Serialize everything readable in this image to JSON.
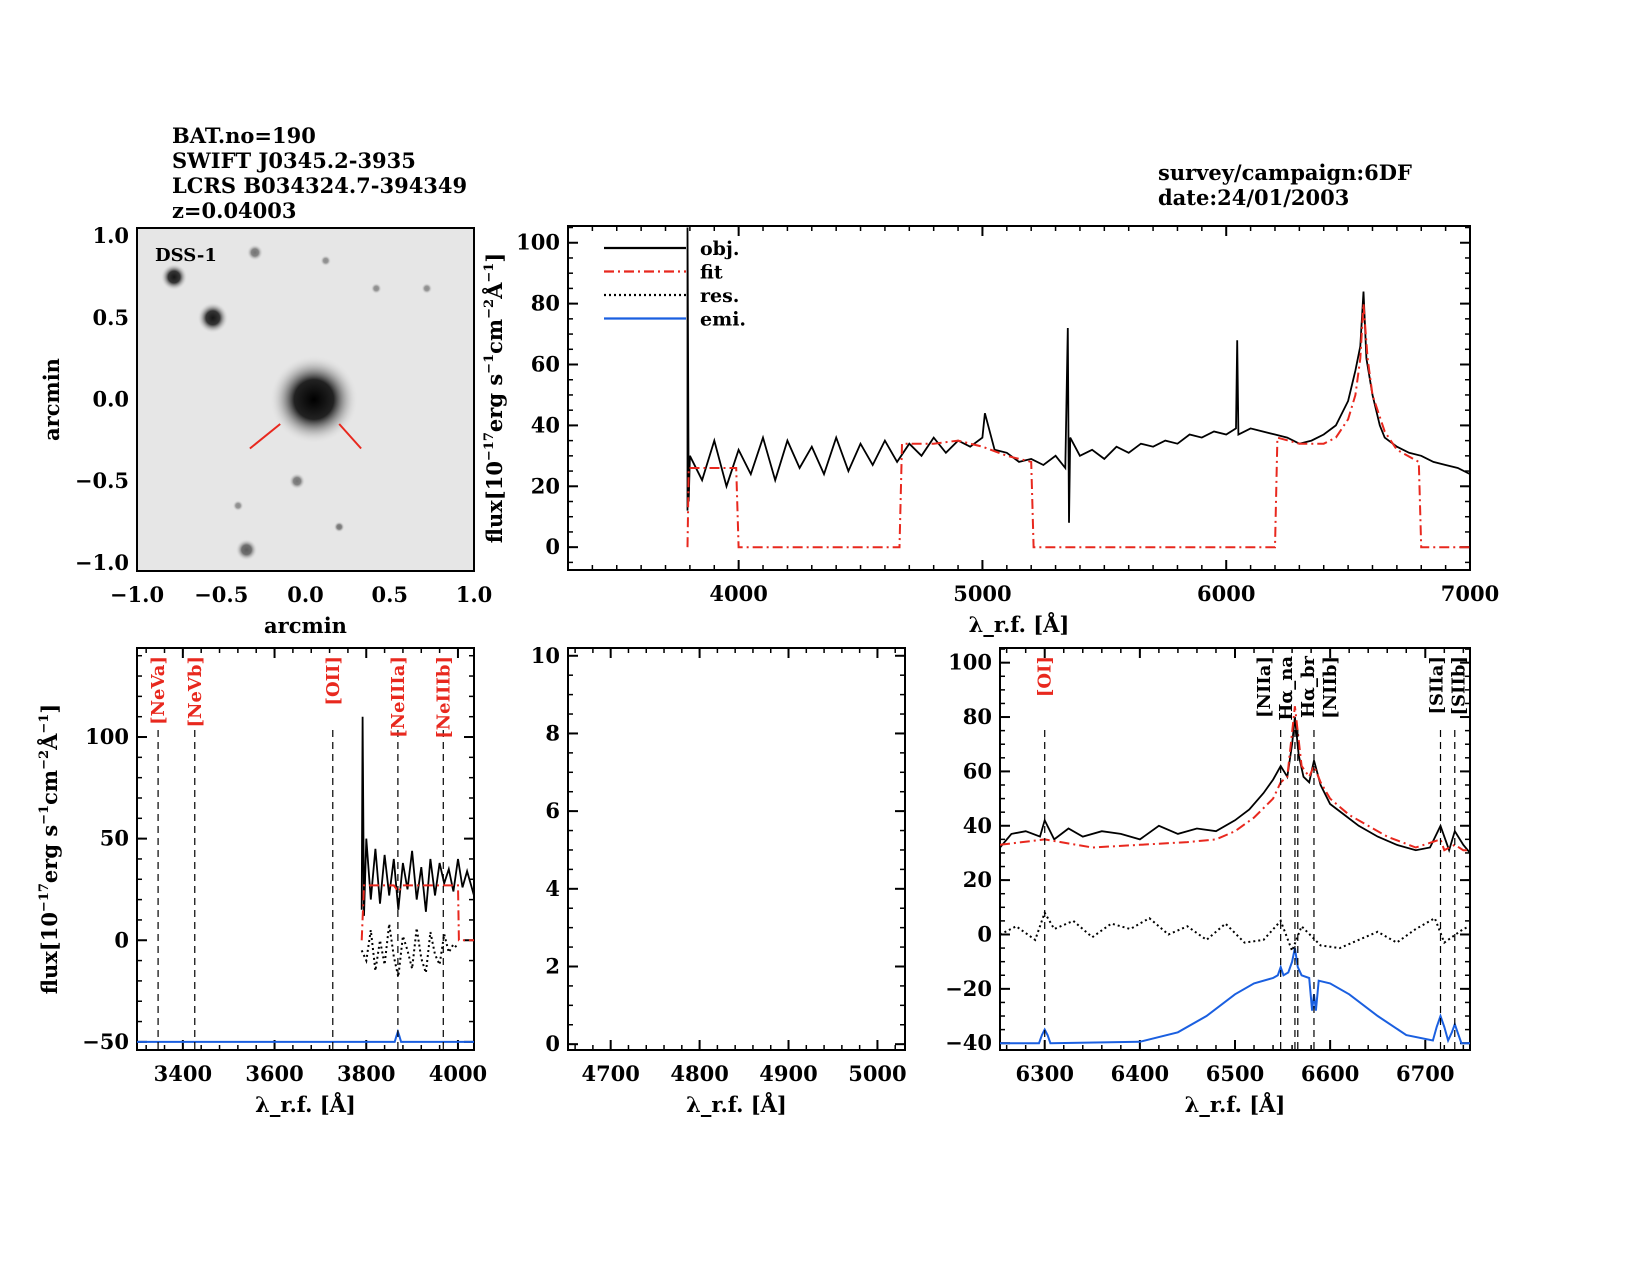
{
  "header": {
    "lines": [
      "BAT.no=190",
      "SWIFT J0345.2-3935",
      "LCRS B034324.7-394349",
      "z=0.04003"
    ],
    "survey": "survey/campaign:6DF",
    "date": "date:24/01/2003"
  },
  "colors": {
    "obj": "#000000",
    "fit": "#e8281e",
    "res": "#000000",
    "emi": "#1a5fe0",
    "line_label_red": "#e8281e",
    "line_label_black": "#000000"
  },
  "chart_data": [
    {
      "type": "image",
      "id": "dss",
      "label": "DSS-1",
      "xlabel": "arcmin",
      "ylabel": "arcmin",
      "xlim": [
        -1.0,
        1.0
      ],
      "ylim": [
        -1.05,
        1.05
      ],
      "xticks": [
        "-1.0",
        "-0.5",
        "0.0",
        "0.5",
        "1.0"
      ],
      "yticks": [
        "-1.0",
        "-0.5",
        "0.0",
        "0.5",
        "1.0"
      ],
      "sources": [
        {
          "x": 0.05,
          "y": 0.0,
          "brightness": 1.0,
          "size": 0.2
        },
        {
          "x": -0.78,
          "y": 0.75,
          "brightness": 0.9,
          "size": 0.06
        },
        {
          "x": -0.55,
          "y": 0.5,
          "brightness": 0.9,
          "size": 0.07
        },
        {
          "x": -0.3,
          "y": 0.9,
          "brightness": 0.5,
          "size": 0.03
        },
        {
          "x": 0.12,
          "y": 0.85,
          "brightness": 0.4,
          "size": 0.02
        },
        {
          "x": 0.42,
          "y": 0.68,
          "brightness": 0.4,
          "size": 0.02
        },
        {
          "x": 0.72,
          "y": 0.68,
          "brightness": 0.4,
          "size": 0.02
        },
        {
          "x": -0.05,
          "y": -0.5,
          "brightness": 0.5,
          "size": 0.03
        },
        {
          "x": -0.4,
          "y": -0.65,
          "brightness": 0.4,
          "size": 0.02
        },
        {
          "x": 0.2,
          "y": -0.78,
          "brightness": 0.5,
          "size": 0.02
        },
        {
          "x": -0.35,
          "y": -0.92,
          "brightness": 0.6,
          "size": 0.04
        }
      ],
      "marker": [
        [
          -0.15,
          -0.15
        ],
        [
          -0.33,
          -0.3
        ],
        [
          0.2,
          -0.15
        ],
        [
          0.33,
          -0.3
        ]
      ]
    },
    {
      "type": "line",
      "id": "full",
      "xlabel": "λ_r.f. [Å]",
      "ylabel": "flux[10^-17 erg s^-1 cm^-2 Å^-1]",
      "xlim": [
        3300,
        7000
      ],
      "ylim": [
        -7.5,
        105.5
      ],
      "xticks": [
        4000,
        5000,
        6000,
        7000
      ],
      "yticks": [
        0,
        20,
        40,
        60,
        80,
        100
      ],
      "legend": {
        "position": "top-left",
        "entries": [
          "obj.",
          "fit",
          "res.",
          "emi."
        ]
      },
      "series": [
        {
          "name": "obj.",
          "style": "solid",
          "color": "obj",
          "x": [
            3790,
            3790,
            3795,
            3800,
            3850,
            3900,
            3950,
            4000,
            4050,
            4100,
            4150,
            4200,
            4250,
            4300,
            4350,
            4400,
            4450,
            4500,
            4550,
            4600,
            4650,
            4700,
            4750,
            4800,
            4850,
            4900,
            4950,
            5000,
            5010,
            5050,
            5100,
            5150,
            5200,
            5250,
            5300,
            5340,
            5350,
            5355,
            5360,
            5400,
            5450,
            5500,
            5550,
            5600,
            5650,
            5700,
            5750,
            5800,
            5850,
            5900,
            5950,
            6000,
            6040,
            6045,
            6050,
            6100,
            6150,
            6200,
            6250,
            6300,
            6350,
            6400,
            6450,
            6500,
            6530,
            6550,
            6563,
            6575,
            6600,
            6630,
            6650,
            6700,
            6750,
            6800,
            6850,
            6900,
            6950,
            7000
          ],
          "y": [
            12,
            105,
            15,
            30,
            22,
            35,
            20,
            32,
            24,
            36,
            22,
            35,
            26,
            33,
            24,
            36,
            25,
            34,
            27,
            35,
            28,
            34,
            30,
            36,
            31,
            35,
            33,
            36,
            44,
            32,
            31,
            28,
            29,
            27,
            30,
            26,
            72,
            8,
            36,
            30,
            32,
            29,
            33,
            31,
            34,
            33,
            35,
            34,
            37,
            36,
            38,
            37,
            39,
            68,
            37,
            39,
            38,
            37,
            36,
            34,
            35,
            37,
            40,
            48,
            58,
            66,
            84,
            62,
            50,
            40,
            36,
            33,
            31,
            30,
            28,
            27,
            26,
            24
          ]
        },
        {
          "name": "fit",
          "style": "dashdot",
          "color": "fit",
          "x": [
            3790,
            3795,
            3990,
            4000,
            4660,
            4670,
            4800,
            4900,
            5000,
            5100,
            5200,
            5210,
            6200,
            6210,
            6300,
            6400,
            6450,
            6500,
            6530,
            6550,
            6563,
            6580,
            6600,
            6650,
            6700,
            6790,
            6800,
            7000
          ],
          "y": [
            0,
            26,
            26,
            0,
            0,
            34,
            34,
            35,
            33,
            30,
            28,
            0,
            0,
            36,
            34,
            34,
            36,
            42,
            50,
            62,
            80,
            62,
            50,
            38,
            32,
            28,
            0,
            0
          ]
        }
      ]
    },
    {
      "type": "line",
      "id": "blue",
      "xlabel": "λ_r.f. [Å]",
      "ylabel": "flux[10^-17 erg s^-1 cm^-2 Å^-1]",
      "xlim": [
        3300,
        4035
      ],
      "ylim": [
        -54,
        143.8
      ],
      "xticks": [
        3400,
        3600,
        3800,
        4000
      ],
      "yticks": [
        -50,
        0,
        50,
        100
      ],
      "lines": [
        {
          "label": "[NeVa]",
          "x": 3346,
          "color": "line_label_red"
        },
        {
          "label": "[NeVb]",
          "x": 3426,
          "color": "line_label_red"
        },
        {
          "label": "[OII]",
          "x": 3727,
          "color": "line_label_red"
        },
        {
          "label": "[NeIIIa]",
          "x": 3869,
          "color": "line_label_red"
        },
        {
          "label": "[NeIIIb]",
          "x": 3968,
          "color": "line_label_red"
        }
      ],
      "series": [
        {
          "name": "obj.",
          "style": "solid",
          "color": "obj",
          "x": [
            3790,
            3792,
            3795,
            3800,
            3810,
            3820,
            3830,
            3840,
            3850,
            3860,
            3870,
            3880,
            3890,
            3900,
            3910,
            3920,
            3930,
            3940,
            3950,
            3960,
            3970,
            3980,
            3990,
            4000,
            4010,
            4020,
            4035
          ],
          "y": [
            15,
            110,
            12,
            50,
            20,
            45,
            18,
            42,
            22,
            40,
            15,
            38,
            25,
            44,
            20,
            36,
            14,
            40,
            22,
            38,
            28,
            35,
            24,
            40,
            26,
            34,
            22
          ]
        },
        {
          "name": "fit",
          "style": "dashdot",
          "color": "fit",
          "x": [
            3790,
            3795,
            3860,
            3870,
            3880,
            4000,
            4002,
            4035
          ],
          "y": [
            0,
            27,
            27,
            24,
            27,
            27,
            0,
            0
          ]
        },
        {
          "name": "res.",
          "style": "dotted",
          "color": "res",
          "x": [
            3790,
            3800,
            3810,
            3820,
            3830,
            3840,
            3850,
            3860,
            3870,
            3880,
            3890,
            3900,
            3910,
            3920,
            3930,
            3940,
            3950,
            3960,
            3970,
            3980,
            3990,
            4000
          ],
          "y": [
            -5,
            -10,
            5,
            -15,
            0,
            -12,
            8,
            -8,
            -18,
            2,
            -5,
            -14,
            6,
            -9,
            -16,
            4,
            -7,
            -12,
            3,
            -6,
            -2,
            -4
          ]
        },
        {
          "name": "emi.",
          "style": "solid",
          "color": "emi",
          "x": [
            3300,
            3862,
            3866,
            3869,
            3872,
            3876,
            4035
          ],
          "y": [
            -50,
            -50,
            -47,
            -45,
            -47,
            -50,
            -50
          ]
        }
      ]
    },
    {
      "type": "line",
      "id": "hbeta",
      "xlabel": "λ_r.f. [Å]",
      "xlim": [
        4652,
        5031
      ],
      "ylim": [
        -0.15,
        10.2
      ],
      "xticks": [
        4700,
        4800,
        4900,
        5000
      ],
      "yticks": [
        0,
        2,
        4,
        6,
        8,
        10
      ],
      "series": []
    },
    {
      "type": "line",
      "id": "halpha",
      "xlabel": "λ_r.f. [Å]",
      "xlim": [
        6253,
        6747
      ],
      "ylim": [
        -42.5,
        105.4
      ],
      "xticks": [
        6300,
        6400,
        6500,
        6600,
        6700
      ],
      "yticks": [
        -40,
        -20,
        0,
        20,
        40,
        60,
        80,
        100
      ],
      "lines": [
        {
          "label": "[OI]",
          "x": 6300,
          "color": "line_label_red"
        },
        {
          "label": "[NIIa]",
          "x": 6548,
          "color": "line_label_black"
        },
        {
          "label": "Hα_na",
          "x": 6563,
          "color": "line_label_black"
        },
        {
          "label": "Hα_br",
          "x": 6566,
          "color": "line_label_black"
        },
        {
          "label": "[NIIb]",
          "x": 6583,
          "color": "line_label_black"
        },
        {
          "label": "[SIIa]",
          "x": 6716,
          "color": "line_label_black"
        },
        {
          "label": "[SIIb]",
          "x": 6731,
          "color": "line_label_black"
        }
      ],
      "series": [
        {
          "name": "obj.",
          "style": "solid",
          "color": "obj",
          "x": [
            6253,
            6265,
            6280,
            6295,
            6300,
            6310,
            6325,
            6340,
            6360,
            6380,
            6400,
            6420,
            6440,
            6460,
            6480,
            6500,
            6515,
            6530,
            6540,
            6548,
            6555,
            6560,
            6563,
            6567,
            6572,
            6578,
            6583,
            6590,
            6600,
            6615,
            6630,
            6650,
            6670,
            6690,
            6705,
            6716,
            6725,
            6731,
            6740,
            6747
          ],
          "y": [
            32,
            37,
            38,
            36,
            42,
            35,
            39,
            36,
            38,
            37,
            35,
            40,
            37,
            39,
            38,
            42,
            46,
            52,
            57,
            62,
            58,
            70,
            80,
            66,
            58,
            56,
            64,
            55,
            48,
            44,
            40,
            36,
            33,
            31,
            32,
            40,
            31,
            38,
            33,
            30
          ]
        },
        {
          "name": "fit",
          "style": "dashdot",
          "color": "fit",
          "x": [
            6253,
            6300,
            6350,
            6400,
            6450,
            6480,
            6500,
            6520,
            6540,
            6548,
            6555,
            6563,
            6570,
            6578,
            6583,
            6590,
            6600,
            6620,
            6640,
            6660,
            6690,
            6716,
            6720,
            6731,
            6740,
            6747
          ],
          "y": [
            33,
            35,
            32,
            33,
            34,
            35,
            38,
            43,
            50,
            56,
            58,
            84,
            62,
            58,
            62,
            56,
            50,
            44,
            40,
            36,
            32,
            35,
            31,
            33,
            31,
            31
          ]
        },
        {
          "name": "res.",
          "style": "dotted",
          "color": "res",
          "x": [
            6253,
            6270,
            6290,
            6300,
            6310,
            6330,
            6350,
            6370,
            6390,
            6410,
            6430,
            6450,
            6470,
            6490,
            6510,
            6530,
            6548,
            6560,
            6570,
            6590,
            6610,
            6630,
            6650,
            6670,
            6690,
            6710,
            6720,
            6740,
            6747
          ],
          "y": [
            0,
            3,
            -2,
            8,
            2,
            5,
            -1,
            4,
            2,
            6,
            0,
            3,
            -2,
            4,
            -3,
            -2,
            5,
            -6,
            3,
            -4,
            -5,
            -2,
            1,
            -3,
            2,
            6,
            -3,
            2,
            3
          ]
        },
        {
          "name": "emi.",
          "style": "solid",
          "color": "emi",
          "x": [
            6253,
            6294,
            6297,
            6300,
            6303,
            6306,
            6400,
            6440,
            6470,
            6500,
            6520,
            6540,
            6545,
            6548,
            6551,
            6556,
            6560,
            6563,
            6566,
            6570,
            6578,
            6581,
            6583,
            6585,
            6588,
            6600,
            6620,
            6650,
            6680,
            6708,
            6712,
            6716,
            6720,
            6724,
            6728,
            6731,
            6734,
            6738,
            6747
          ],
          "y": [
            -40,
            -40,
            -37,
            -35,
            -37,
            -40,
            -39.5,
            -36,
            -30,
            -22,
            -18,
            -16,
            -15,
            -12,
            -15,
            -14,
            -10,
            -5,
            -12,
            -15,
            -16,
            -28,
            -22,
            -28,
            -17,
            -18,
            -22,
            -30,
            -37,
            -39,
            -34,
            -30,
            -34,
            -39,
            -36,
            -33,
            -36,
            -40,
            -40
          ]
        }
      ]
    }
  ]
}
